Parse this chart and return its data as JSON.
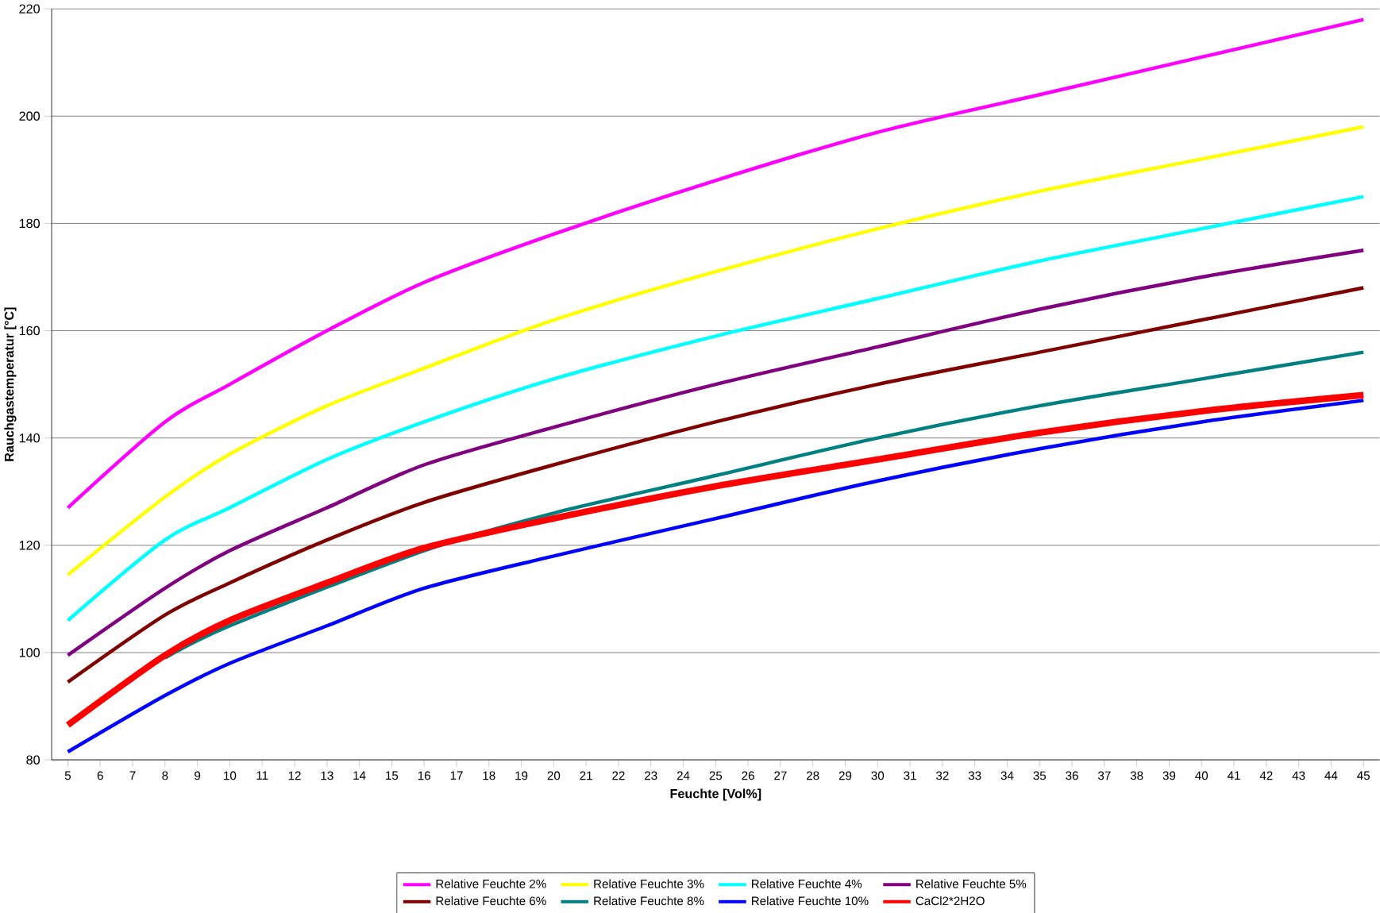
{
  "chart_data": {
    "type": "line",
    "xlabel": "Feuchte [Vol%]",
    "ylabel": "Rauchgastemperatur [°C]",
    "xlim": [
      4.5,
      45.5
    ],
    "xticks": [
      5,
      6,
      7,
      8,
      9,
      10,
      11,
      12,
      13,
      14,
      15,
      16,
      17,
      18,
      19,
      20,
      21,
      22,
      23,
      24,
      25,
      26,
      27,
      28,
      29,
      30,
      31,
      32,
      33,
      34,
      35,
      36,
      37,
      38,
      39,
      40,
      41,
      42,
      43,
      44,
      45
    ],
    "ylim": [
      80,
      220
    ],
    "yticks": [
      80,
      100,
      120,
      140,
      160,
      180,
      200,
      220
    ],
    "grid": "y",
    "legend": "bottom",
    "marker": "none",
    "line_style": "solid",
    "x": [
      5,
      8,
      10,
      13,
      16,
      20,
      25,
      30,
      35,
      40,
      45
    ],
    "series": [
      {
        "name": "Relative Feuchte 2%",
        "color": "#ff00ff",
        "values": [
          127,
          143,
          150,
          160,
          169,
          178,
          188,
          197,
          204,
          211,
          218
        ]
      },
      {
        "name": "Relative Feuchte 3%",
        "color": "#ffff00",
        "values": [
          114.5,
          129,
          137,
          146,
          153,
          162,
          171,
          179,
          186,
          192,
          198
        ]
      },
      {
        "name": "Relative Feuchte 4%",
        "color": "#00ffff",
        "values": [
          106,
          121,
          127,
          136,
          143,
          151,
          159,
          166,
          173,
          179,
          185
        ]
      },
      {
        "name": "Relative Feuchte 5%",
        "color": "#800080",
        "values": [
          99.5,
          112,
          119,
          127,
          135,
          142,
          150,
          157,
          164,
          170,
          175
        ]
      },
      {
        "name": "Relative Feuchte 6%",
        "color": "#800000",
        "values": [
          94.5,
          107,
          113,
          121,
          128,
          135,
          143,
          150,
          156,
          162,
          168
        ]
      },
      {
        "name": "Relative Feuchte 8%",
        "color": "#008080",
        "values": [
          null,
          99,
          105,
          null,
          119,
          126,
          133,
          140,
          146,
          151,
          156
        ]
      },
      {
        "name": "Relative Feuchte 10%",
        "color": "#0000ff",
        "values": [
          81.5,
          92,
          98,
          105,
          112,
          118,
          125,
          132,
          138,
          143,
          147
        ]
      },
      {
        "name": "CaCl2*2H2O",
        "color": "#ff0000",
        "values": [
          86.5,
          99.5,
          106,
          113,
          119.5,
          125,
          131,
          136,
          141,
          145,
          148
        ]
      }
    ]
  }
}
